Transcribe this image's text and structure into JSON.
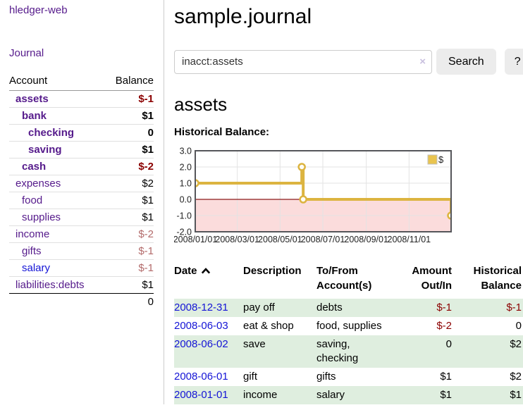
{
  "app": {
    "brand": "hledger-web"
  },
  "sidebar": {
    "nav_journal": "Journal",
    "table_headers": {
      "account": "Account",
      "balance": "Balance"
    },
    "accounts": [
      {
        "name": "assets",
        "depth": 1,
        "bold": true,
        "link_color": "purple",
        "balance": "$-1",
        "balance_style": "neg-strong"
      },
      {
        "name": "bank",
        "depth": 2,
        "bold": true,
        "link_color": "purple",
        "balance": "$1",
        "balance_style": "strong"
      },
      {
        "name": "checking",
        "depth": 3,
        "bold": true,
        "link_color": "purple",
        "balance": "0",
        "balance_style": "strong"
      },
      {
        "name": "saving",
        "depth": 3,
        "bold": true,
        "link_color": "purple",
        "balance": "$1",
        "balance_style": "strong"
      },
      {
        "name": "cash",
        "depth": 2,
        "bold": true,
        "link_color": "purple",
        "balance": "$-2",
        "balance_style": "neg-strong"
      },
      {
        "name": "expenses",
        "depth": 1,
        "bold": false,
        "link_color": "purple",
        "balance": "$2",
        "balance_style": "normal"
      },
      {
        "name": "food",
        "depth": 2,
        "bold": false,
        "link_color": "purple",
        "balance": "$1",
        "balance_style": "normal"
      },
      {
        "name": "supplies",
        "depth": 2,
        "bold": false,
        "link_color": "purple",
        "balance": "$1",
        "balance_style": "normal"
      },
      {
        "name": "income",
        "depth": 1,
        "bold": false,
        "link_color": "purple",
        "balance": "$-2",
        "balance_style": "neg-dim"
      },
      {
        "name": "gifts",
        "depth": 2,
        "bold": false,
        "link_color": "purple",
        "balance": "$-1",
        "balance_style": "neg-dim"
      },
      {
        "name": "salary",
        "depth": 2,
        "bold": false,
        "link_color": "blue",
        "balance": "$-1",
        "balance_style": "neg-dim"
      },
      {
        "name": "liabilities:debts",
        "depth": 1,
        "bold": false,
        "link_color": "purple",
        "balance": "$1",
        "balance_style": "normal"
      }
    ],
    "total": "0"
  },
  "header": {
    "title": "sample.journal"
  },
  "search": {
    "value": "inacct:assets",
    "clear_icon": "×",
    "button_label": "Search",
    "help_label": "?"
  },
  "main": {
    "account_heading": "assets",
    "chart_heading": "Historical Balance:"
  },
  "chart_data": {
    "type": "line",
    "step": true,
    "title": "Historical Balance:",
    "series": [
      {
        "name": "$",
        "points": [
          [
            "2008-01-01",
            1
          ],
          [
            "2008-06-01",
            2
          ],
          [
            "2008-06-03",
            0
          ],
          [
            "2008-12-31",
            -1
          ]
        ]
      }
    ],
    "x_range": [
      "2008-01-01",
      "2008-12-31"
    ],
    "x_ticks": [
      {
        "date": "2008-01-01",
        "label": "2008/01/01"
      },
      {
        "date": "2008-03-01",
        "label": "2008/03/01"
      },
      {
        "date": "2008-05-01",
        "label": "2008/05/01"
      },
      {
        "date": "2008-07-01",
        "label": "2008/07/01"
      },
      {
        "date": "2008-09-01",
        "label": "2008/09/01"
      },
      {
        "date": "2008-11-01",
        "label": "2008/11/01"
      }
    ],
    "y_ticks": [
      3.0,
      2.0,
      1.0,
      0.0,
      -1.0,
      -2.0
    ],
    "ylim": [
      -2,
      3
    ],
    "grid": true,
    "legend": {
      "label": "$",
      "position": "top-right"
    }
  },
  "register": {
    "headers": [
      {
        "label": "Date",
        "sort": "asc",
        "align": "left"
      },
      {
        "label": "Description",
        "align": "left"
      },
      {
        "label": "To/From Account(s)",
        "align": "left"
      },
      {
        "label": "Amount Out/In",
        "align": "right"
      },
      {
        "label": "Historical Balance",
        "align": "right"
      }
    ],
    "rows": [
      {
        "date": "2008-12-31",
        "description": "pay off",
        "accounts": "debts",
        "amount": "$-1",
        "amount_negative": true,
        "balance": "$-1",
        "balance_negative": true,
        "highlight": true
      },
      {
        "date": "2008-06-03",
        "description": "eat & shop",
        "accounts": "food, supplies",
        "amount": "$-2",
        "amount_negative": true,
        "balance": "0",
        "balance_negative": false,
        "highlight": false
      },
      {
        "date": "2008-06-02",
        "description": "save",
        "accounts": "saving, checking",
        "amount": "0",
        "amount_negative": false,
        "balance": "$2",
        "balance_negative": false,
        "highlight": true
      },
      {
        "date": "2008-06-01",
        "description": "gift",
        "accounts": "gifts",
        "amount": "$1",
        "amount_negative": false,
        "balance": "$2",
        "balance_negative": false,
        "highlight": false
      },
      {
        "date": "2008-01-01",
        "description": "income",
        "accounts": "salary",
        "amount": "$1",
        "amount_negative": false,
        "balance": "$1",
        "balance_negative": false,
        "highlight": true
      }
    ]
  },
  "colors": {
    "link_purple": "#551a8b",
    "link_blue": "#1414d6",
    "negative": "#8b0000",
    "negative_dim": "#b36b6b",
    "row_highlight": "#dfeedf",
    "chart_line": "#dcb440",
    "chart_marker_fill": "#fffdf5",
    "chart_negative_fill": "#fbdcdc",
    "chart_zero_line": "#8c1a1a",
    "chart_border": "#55565a",
    "chart_grid": "#e3e3e3",
    "legend_square_fill": "#e9c44f"
  }
}
